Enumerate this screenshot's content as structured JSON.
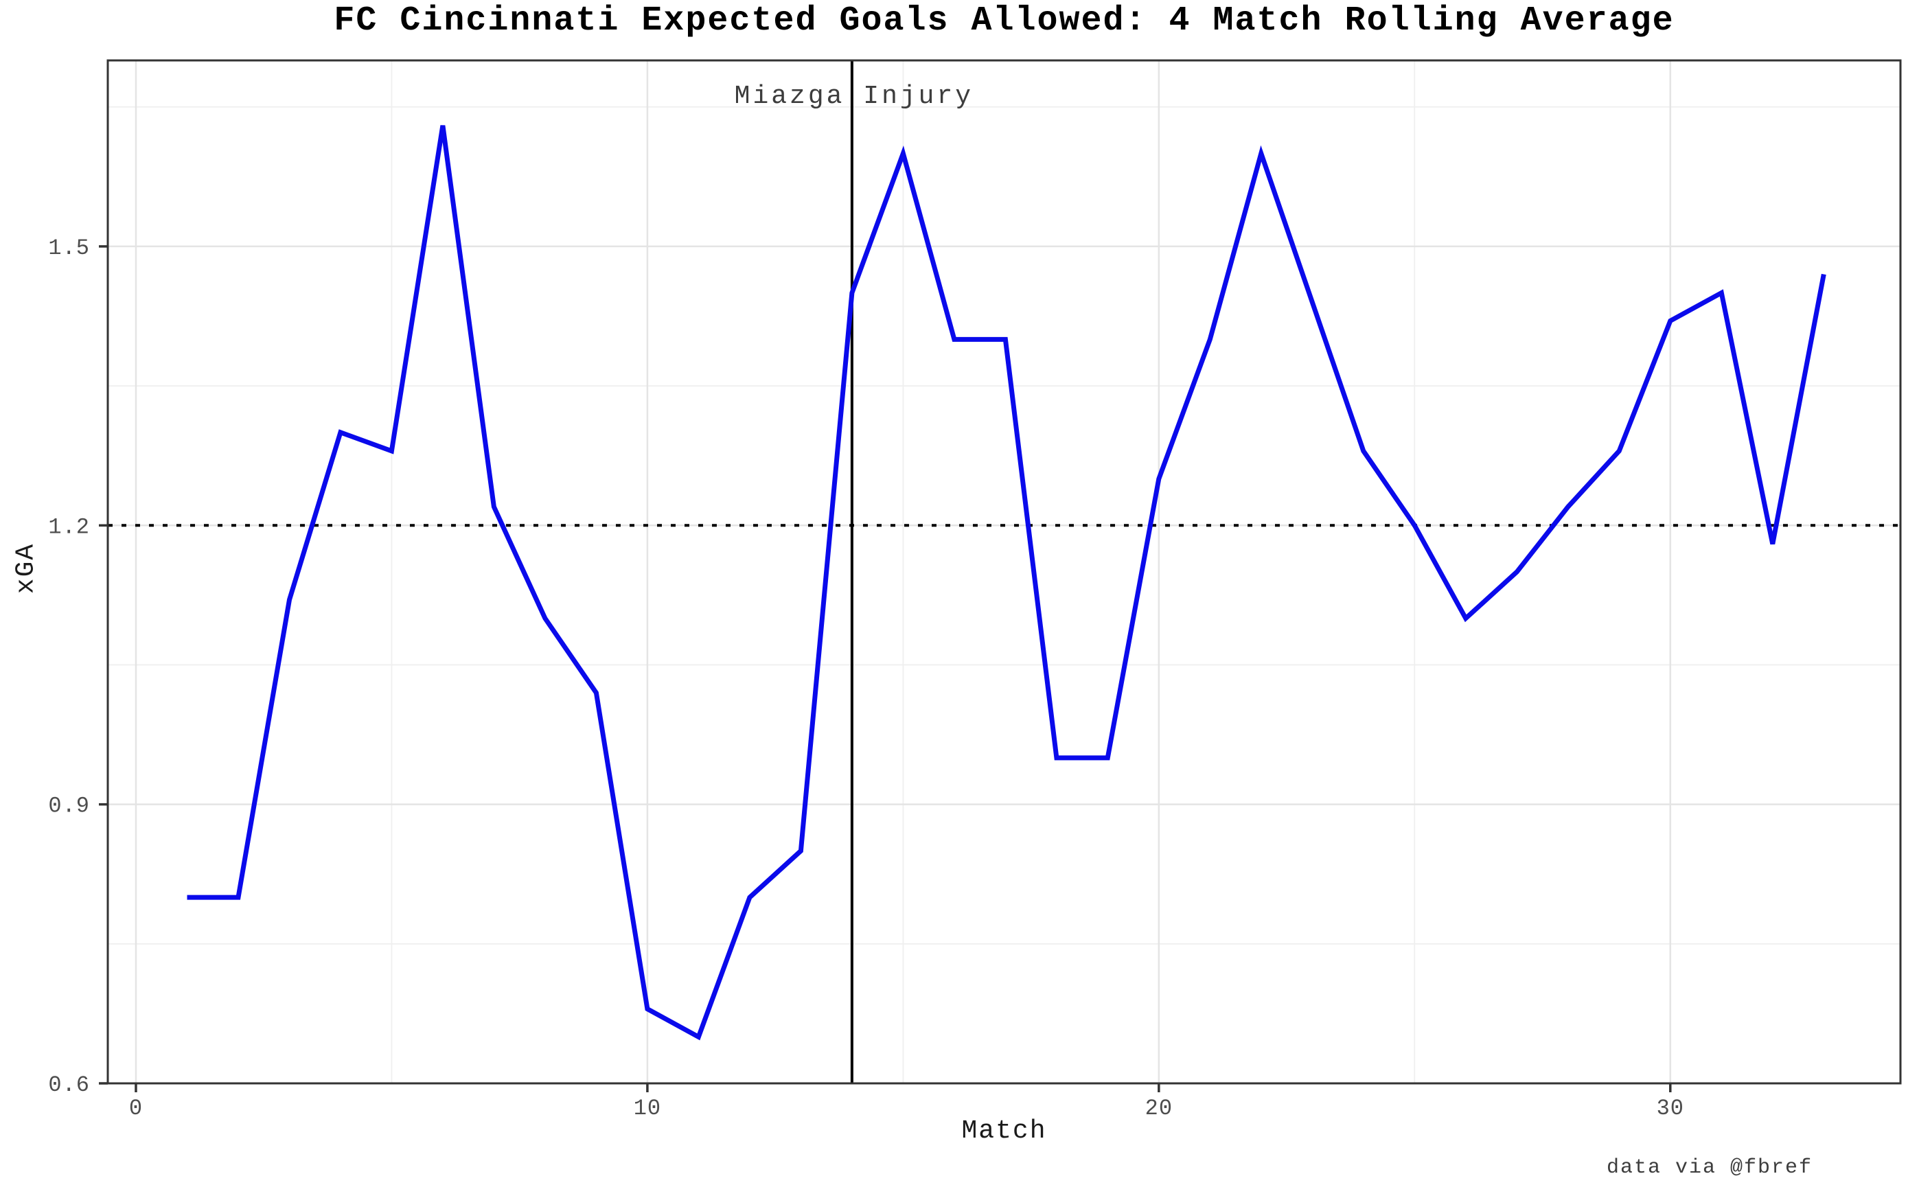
{
  "figure": {
    "credit": "data via @fbref"
  },
  "colors": {
    "background": "#ffffff",
    "grid_major": "#e4e4e4",
    "grid_minor": "#efefef",
    "panel_border": "#333333",
    "tick_mark": "#333333",
    "tick_label": "#4d4d4d",
    "axis_title": "#1a1a1a",
    "annotation": "#3d3d3d",
    "series_blue": "#0a0aeb",
    "reference_black": "#000000"
  },
  "chart_data": {
    "type": "line",
    "title": "FC Cincinnati Expected Goals Allowed: 4 Match Rolling Average",
    "xlabel": "Match",
    "ylabel": "xGA",
    "x": [
      1,
      2,
      3,
      4,
      5,
      6,
      7,
      8,
      9,
      10,
      11,
      12,
      13,
      14,
      15,
      16,
      17,
      18,
      19,
      20,
      21,
      22,
      23,
      24,
      25,
      26,
      27,
      28,
      29,
      30,
      31,
      32,
      33
    ],
    "series": [
      {
        "name": "xGA 4-match rolling average",
        "color": "#0a0aeb",
        "values": [
          0.8,
          0.8,
          1.12,
          1.3,
          1.28,
          1.63,
          1.22,
          1.1,
          1.02,
          0.68,
          0.65,
          0.8,
          0.85,
          1.45,
          1.6,
          1.4,
          1.4,
          0.95,
          0.95,
          1.25,
          1.4,
          1.6,
          1.44,
          1.28,
          1.2,
          1.1,
          1.15,
          1.22,
          1.28,
          1.42,
          1.45,
          1.18,
          1.47
        ]
      }
    ],
    "xlim": [
      -0.55,
      34.5
    ],
    "ylim": [
      0.6,
      1.7
    ],
    "xticks": [
      {
        "label": "0",
        "value": 0
      },
      {
        "label": "10",
        "value": 10
      },
      {
        "label": "20",
        "value": 20
      },
      {
        "label": "30",
        "value": 30
      }
    ],
    "yticks": [
      {
        "label": "0.6",
        "value": 0.6
      },
      {
        "label": "0.9",
        "value": 0.9
      },
      {
        "label": "1.2",
        "value": 1.2
      },
      {
        "label": "1.5",
        "value": 1.5
      }
    ],
    "x_minor_gridlines": [
      5,
      15,
      25
    ],
    "y_minor_gridlines": [
      0.75,
      1.05,
      1.35,
      1.65
    ],
    "grid": "on",
    "legend_position": "none",
    "reference_line": {
      "y": 1.2,
      "linestyle": "dotted",
      "color": "#000000"
    },
    "event_line": {
      "x": 14,
      "label": "Miazga Injury",
      "color": "#000000"
    }
  }
}
